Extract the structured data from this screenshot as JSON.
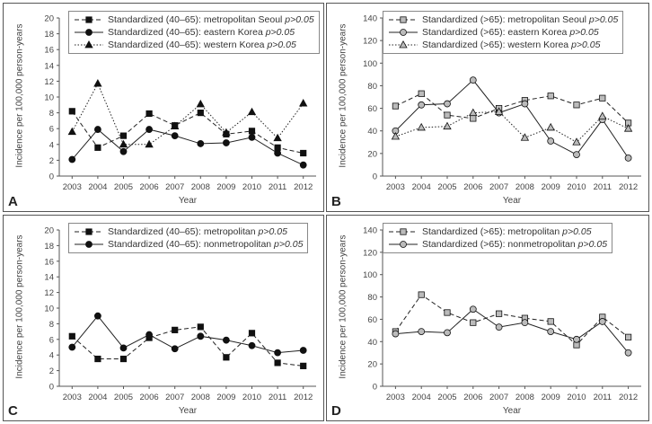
{
  "chart_data": [
    {
      "type": "line",
      "panel_letter": "A",
      "xlabel": "Year",
      "ylabel": "Incidence per 100,000 person-years",
      "categories": [
        "2003",
        "2004",
        "2005",
        "2006",
        "2007",
        "2008",
        "2009",
        "2010",
        "2011",
        "2012"
      ],
      "ylim": [
        0,
        20
      ],
      "yticks": [
        "0",
        "2",
        "4",
        "6",
        "8",
        "10",
        "12",
        "14",
        "16",
        "18",
        "20"
      ],
      "grid": false,
      "legend_position": "top-left",
      "series": [
        {
          "name": "Standardized (40–65): metropolitan Seoul",
          "p": "p>0.05",
          "marker": "square",
          "line": "dashed",
          "fill": "#111111",
          "values": [
            8.2,
            3.6,
            5.1,
            7.9,
            6.4,
            8.0,
            5.3,
            5.7,
            3.6,
            2.9
          ]
        },
        {
          "name": "Standardized (40–65): eastern Korea",
          "p": "p>0.05",
          "marker": "circle",
          "line": "solid",
          "fill": "#111111",
          "values": [
            2.1,
            5.9,
            3.1,
            5.9,
            5.1,
            4.1,
            4.2,
            4.9,
            2.9,
            1.4
          ]
        },
        {
          "name": "Standardized (40–65): western Korea",
          "p": "p>0.05",
          "marker": "triangle",
          "line": "dotted",
          "fill": "#111111",
          "values": [
            5.6,
            11.7,
            4.0,
            4.0,
            6.3,
            9.1,
            5.5,
            8.1,
            4.8,
            9.2
          ]
        }
      ]
    },
    {
      "type": "line",
      "panel_letter": "B",
      "xlabel": "Year",
      "ylabel": "Incidence per 100,000 person-years",
      "categories": [
        "2003",
        "2004",
        "2005",
        "2006",
        "2007",
        "2008",
        "2009",
        "2010",
        "2011",
        "2012"
      ],
      "ylim": [
        0,
        140
      ],
      "yticks": [
        "0",
        "20",
        "40",
        "60",
        "80",
        "100",
        "120",
        "140"
      ],
      "grid": false,
      "legend_position": "top-left",
      "series": [
        {
          "name": "Standardized (>65): metropolitan Seoul",
          "p": "p>0.05",
          "marker": "square",
          "line": "dashed",
          "fill": "#bbbbbb",
          "values": [
            62,
            73,
            54,
            51,
            60,
            67,
            71,
            63,
            69,
            47
          ]
        },
        {
          "name": "Standardized (>65): eastern Korea",
          "p": "p>0.05",
          "marker": "circle",
          "line": "solid",
          "fill": "#bbbbbb",
          "values": [
            40,
            63,
            64,
            85,
            56,
            64,
            31,
            19,
            50,
            16
          ]
        },
        {
          "name": "Standardized (>65): western Korea",
          "p": "p>0.05",
          "marker": "triangle",
          "line": "dotted",
          "fill": "#bbbbbb",
          "values": [
            35,
            43,
            44,
            56,
            57,
            34,
            43,
            30,
            53,
            42
          ]
        }
      ]
    },
    {
      "type": "line",
      "panel_letter": "C",
      "xlabel": "Year",
      "ylabel": "Incidence per 100,000 person-years",
      "categories": [
        "2003",
        "2004",
        "2005",
        "2006",
        "2007",
        "2008",
        "2009",
        "2010",
        "2011",
        "2012"
      ],
      "ylim": [
        0,
        20
      ],
      "yticks": [
        "0",
        "2",
        "4",
        "6",
        "8",
        "10",
        "12",
        "14",
        "16",
        "18",
        "20"
      ],
      "grid": false,
      "legend_position": "top-left",
      "series": [
        {
          "name": "Standardized (40–65): metropolitan",
          "p": "p>0.05",
          "marker": "square",
          "line": "dashed",
          "fill": "#111111",
          "values": [
            6.4,
            3.5,
            3.5,
            6.2,
            7.2,
            7.6,
            3.7,
            6.8,
            3.0,
            2.6
          ]
        },
        {
          "name": "Standardized (40–65): nonmetropolitan",
          "p": "p>0.05",
          "marker": "circle",
          "line": "solid",
          "fill": "#111111",
          "values": [
            5.0,
            9.0,
            4.9,
            6.6,
            4.8,
            6.4,
            5.9,
            5.2,
            4.3,
            4.6
          ]
        }
      ]
    },
    {
      "type": "line",
      "panel_letter": "D",
      "xlabel": "Year",
      "ylabel": "Incidence per 100,000 person-years",
      "categories": [
        "2003",
        "2004",
        "2005",
        "2006",
        "2007",
        "2008",
        "2009",
        "2010",
        "2011",
        "2012"
      ],
      "ylim": [
        0,
        140
      ],
      "yticks": [
        "0",
        "20",
        "40",
        "60",
        "80",
        "100",
        "120",
        "140"
      ],
      "grid": false,
      "legend_position": "top-left",
      "series": [
        {
          "name": "Standardized (>65): metropolitan",
          "p": "p>0.05",
          "marker": "square",
          "line": "dashed",
          "fill": "#bbbbbb",
          "values": [
            49,
            82,
            66,
            57,
            65,
            61,
            58,
            37,
            62,
            44
          ]
        },
        {
          "name": "Standardized (>65): nonmetropolitan",
          "p": "p>0.05",
          "marker": "circle",
          "line": "solid",
          "fill": "#bbbbbb",
          "values": [
            47,
            49,
            48,
            69,
            53,
            57,
            49,
            42,
            58,
            30
          ]
        }
      ]
    }
  ]
}
